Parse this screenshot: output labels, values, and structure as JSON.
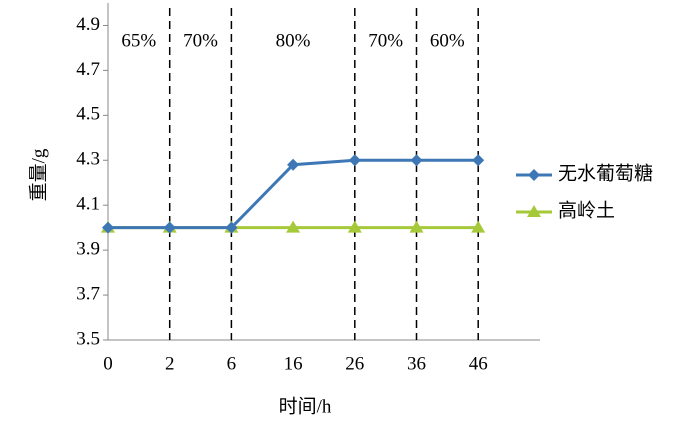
{
  "chart_data": {
    "type": "line",
    "x_label": "时间/h",
    "y_label": "重量/g",
    "categories": [
      "0",
      "2",
      "6",
      "16",
      "26",
      "36",
      "46"
    ],
    "series": [
      {
        "name": "无水葡萄糖",
        "color": "#3d77b5",
        "marker": "diamond",
        "values": [
          4.0,
          4.0,
          4.0,
          4.28,
          4.3,
          4.3,
          4.3
        ]
      },
      {
        "name": "高岭土",
        "color": "#a6c93a",
        "marker": "triangle",
        "values": [
          4.0,
          4.0,
          4.0,
          4.0,
          4.0,
          4.0,
          4.0
        ]
      }
    ],
    "ylim": [
      3.5,
      5.0
    ],
    "yticks": [
      3.5,
      3.7,
      3.9,
      4.1,
      4.3,
      4.5,
      4.7,
      4.9
    ],
    "dividers": [
      1,
      2,
      4,
      5,
      6
    ],
    "annotations": [
      "65%",
      "70%",
      "80%",
      "70%",
      "60%"
    ],
    "legend": "right"
  }
}
